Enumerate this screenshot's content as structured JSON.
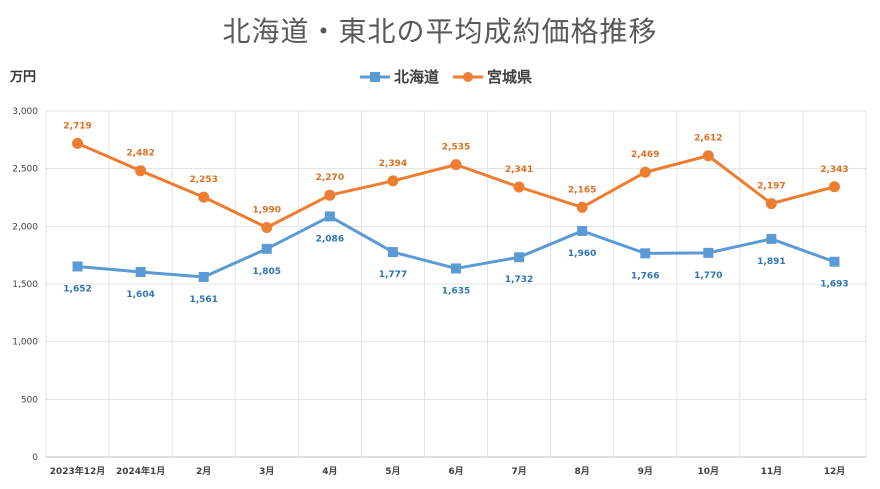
{
  "chart_data": {
    "type": "line",
    "title": "北海道・東北の平均成約価格推移",
    "ylabel": "万円",
    "xlabel": "",
    "ylim": [
      0,
      3000
    ],
    "yticks": [
      "0",
      "500",
      "1,000",
      "1,500",
      "2,000",
      "2,500",
      "3,000"
    ],
    "ytick_values": [
      0,
      500,
      1000,
      1500,
      2000,
      2500,
      3000
    ],
    "legend_position": "top-center",
    "grid": true,
    "categories": [
      "2023年12月",
      "2024年1月",
      "2月",
      "3月",
      "4月",
      "5月",
      "6月",
      "7月",
      "8月",
      "9月",
      "10月",
      "11月",
      "12月"
    ],
    "series": [
      {
        "name": "北海道",
        "color": "#5b9bd5",
        "label_color": "#2e75b6",
        "marker": "square",
        "values": [
          1652,
          1604,
          1561,
          1805,
          2086,
          1777,
          1635,
          1732,
          1960,
          1766,
          1770,
          1891,
          1693
        ],
        "labels": [
          "1,652",
          "1,604",
          "1,561",
          "1,805",
          "2,086",
          "1,777",
          "1,635",
          "1,732",
          "1,960",
          "1,766",
          "1,770",
          "1,891",
          "1,693"
        ]
      },
      {
        "name": "宮城県",
        "color": "#ed7d31",
        "label_color": "#e07020",
        "marker": "circle",
        "values": [
          2719,
          2482,
          2253,
          1990,
          2270,
          2394,
          2535,
          2341,
          2165,
          2469,
          2612,
          2197,
          2343
        ],
        "labels": [
          "2,719",
          "2,482",
          "2,253",
          "1,990",
          "2,270",
          "2,394",
          "2,535",
          "2,341",
          "2,165",
          "2,469",
          "2,612",
          "2,197",
          "2,343"
        ]
      }
    ]
  }
}
